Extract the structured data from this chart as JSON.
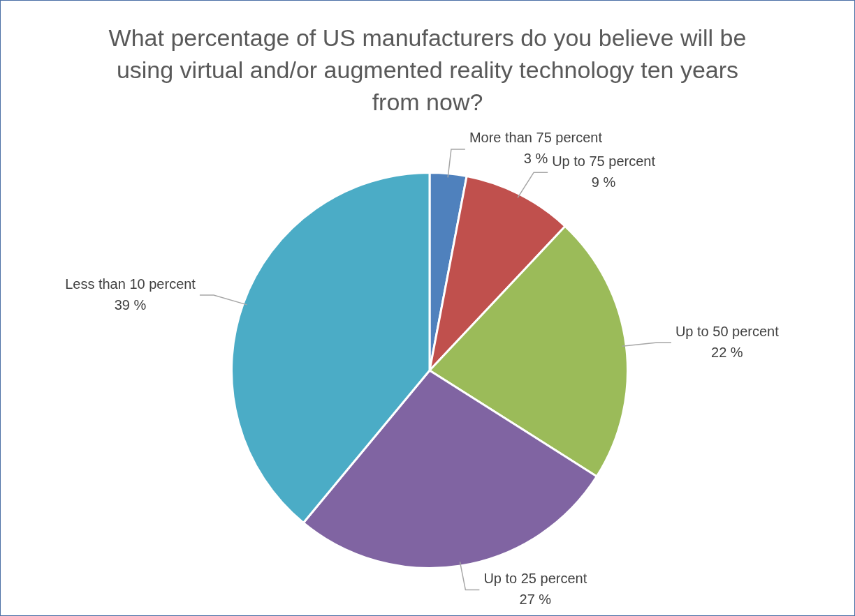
{
  "chart_data": {
    "type": "pie",
    "title": "What percentage of US manufacturers do you believe will be using virtual and/or augmented reality technology ten years from now?",
    "categories": [
      "More than 75 percent",
      "Up to 75 percent",
      "Up to 50 percent",
      "Up to 25 percent",
      "Less than 10 percent"
    ],
    "values": [
      3,
      9,
      22,
      27,
      39
    ],
    "value_labels": [
      "3 %",
      "9 %",
      "22 %",
      "27 %",
      "39 %"
    ],
    "colors": [
      "#4f81bd",
      "#c0504d",
      "#9bbb59",
      "#8064a2",
      "#4bacc6"
    ],
    "legend": false
  }
}
